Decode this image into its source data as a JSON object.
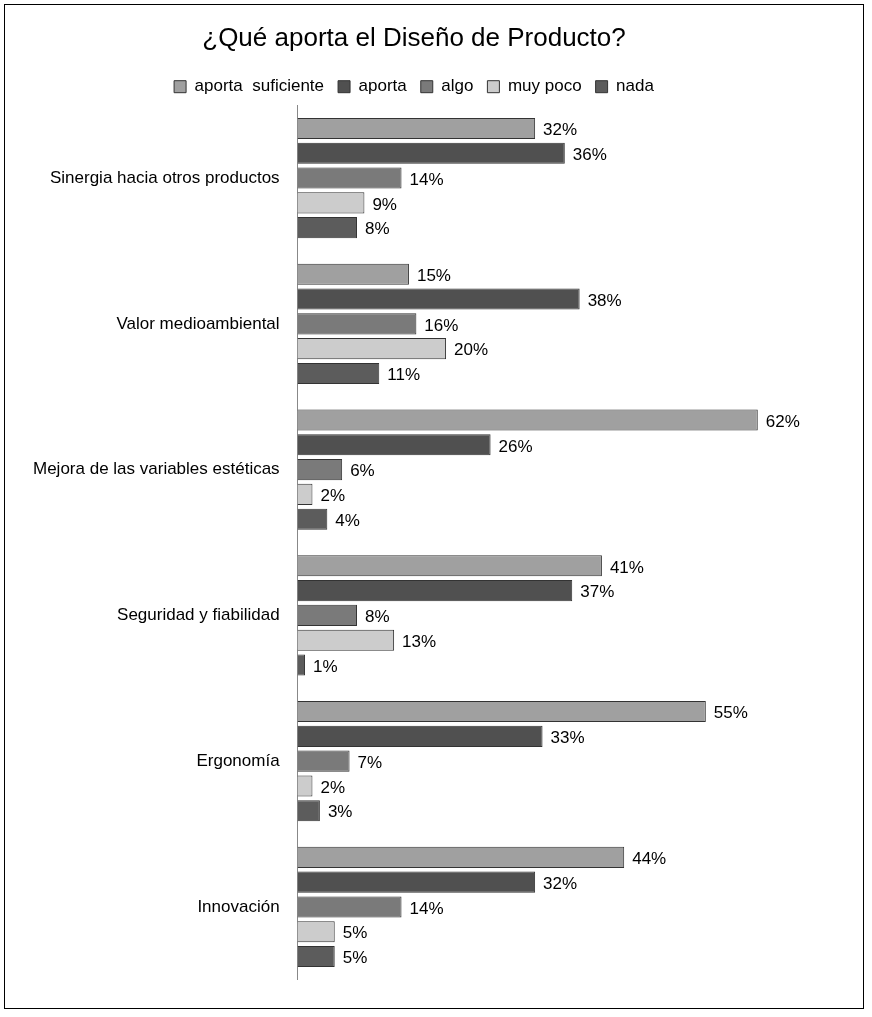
{
  "chart_data": {
    "type": "bar",
    "orientation": "horizontal",
    "title": "¿Qué aporta el Diseño de Producto?",
    "categories": [
      "Sinergia hacia otros productos",
      "Valor medioambiental",
      "Mejora de las variables estéticas",
      "Seguridad y fiabilidad",
      "Ergonomía",
      "Innovación"
    ],
    "series": [
      {
        "name": "aporta  suficiente",
        "color": "#a0a0a0",
        "values": [
          32,
          15,
          62,
          41,
          55,
          44
        ],
        "value_labels": [
          "32%",
          "15%",
          "62%",
          "41%",
          "55%",
          "44%"
        ]
      },
      {
        "name": "aporta",
        "color": "#505050",
        "values": [
          36,
          38,
          26,
          37,
          33,
          32
        ],
        "value_labels": [
          "36%",
          "38%",
          "26%",
          "37%",
          "33%",
          "32%"
        ]
      },
      {
        "name": "algo",
        "color": "#7a7a7a",
        "values": [
          14,
          16,
          6,
          8,
          7,
          14
        ],
        "value_labels": [
          "14%",
          "16%",
          "6%",
          "8%",
          "7%",
          "14%"
        ]
      },
      {
        "name": "muy poco",
        "color": "#cccccc",
        "values": [
          9,
          20,
          2,
          13,
          2,
          5
        ],
        "value_labels": [
          "9%",
          "20%",
          "2%",
          "13%",
          "2%",
          "5%"
        ]
      },
      {
        "name": "nada",
        "color": "#5c5c5c",
        "values": [
          8,
          11,
          4,
          1,
          3,
          5
        ],
        "value_labels": [
          "8%",
          "11%",
          "4%",
          "1%",
          "3%",
          "5%"
        ]
      }
    ],
    "legend": "top",
    "grid": false,
    "tick_labels": "y"
  }
}
